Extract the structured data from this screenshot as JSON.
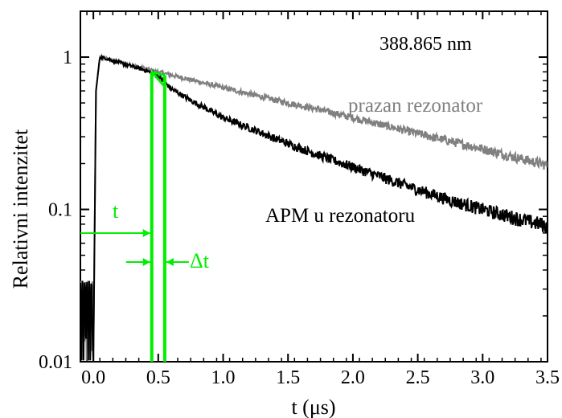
{
  "chart_data": {
    "type": "line",
    "title": "",
    "xlabel": "t (μs)",
    "ylabel": "Relativni intenzitet",
    "xlim": [
      -0.1,
      3.5
    ],
    "ylim": [
      0.01,
      2
    ],
    "yscale": "log",
    "grid": false,
    "x_ticks": [
      0.0,
      0.5,
      1.0,
      1.5,
      2.0,
      2.5,
      3.0,
      3.5
    ],
    "x_tick_labels": [
      "0.0",
      "0.5",
      "1.0",
      "1.5",
      "2.0",
      "2.5",
      "3.0",
      "3.5"
    ],
    "y_ticks": [
      0.01,
      0.1,
      1
    ],
    "y_tick_labels": [
      "0.01",
      "0.1",
      "1"
    ],
    "series": [
      {
        "name": "prazan rezonator",
        "color": "#808080",
        "decay_time": 2.15,
        "x": [
          0.0,
          0.02,
          0.05,
          0.1,
          0.2,
          0.3,
          0.4,
          0.5,
          0.75,
          1.0,
          1.25,
          1.5,
          1.75,
          2.0,
          2.25,
          2.5,
          2.75,
          3.0,
          3.25,
          3.5
        ],
        "y": [
          0.01,
          0.6,
          1.0,
          0.98,
          0.93,
          0.88,
          0.84,
          0.8,
          0.71,
          0.63,
          0.56,
          0.5,
          0.45,
          0.4,
          0.355,
          0.315,
          0.28,
          0.25,
          0.22,
          0.195
        ]
      },
      {
        "name": "APM u rezonatoru",
        "color": "#000000",
        "decay_time": 1.38,
        "x": [
          0.0,
          0.02,
          0.05,
          0.1,
          0.2,
          0.3,
          0.4,
          0.5,
          0.6,
          0.75,
          1.0,
          1.25,
          1.5,
          1.75,
          2.0,
          2.25,
          2.5,
          2.75,
          3.0,
          3.25,
          3.5
        ],
        "y": [
          0.01,
          0.6,
          1.0,
          0.98,
          0.92,
          0.87,
          0.82,
          0.75,
          0.62,
          0.52,
          0.4,
          0.33,
          0.27,
          0.225,
          0.19,
          0.16,
          0.135,
          0.115,
          0.1,
          0.088,
          0.078
        ]
      }
    ],
    "annotations": {
      "wavelength": "388.865  nm",
      "t_label": "t",
      "dt_label": "Δt",
      "t_start": 0.45,
      "t_end": 0.55,
      "triangle_color": "#00ee00"
    }
  }
}
